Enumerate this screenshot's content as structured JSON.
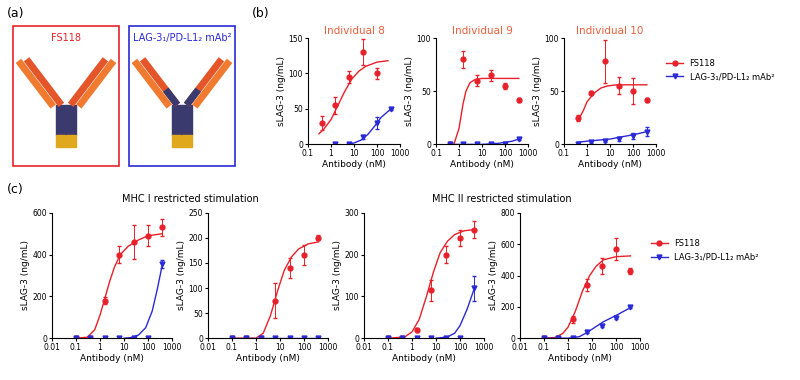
{
  "diagram": {
    "label": "(a)",
    "molecules": [
      {
        "name": "FS118",
        "color": "#e8202a"
      },
      {
        "name": "LAG-3₁/PD-L1₂ mAb²",
        "color": "#2a2ad6"
      }
    ]
  },
  "panel_labels": [
    "(b)",
    "(c)"
  ],
  "group_titles": [
    "MHC I restricted stimulation",
    "MHC II restricted stimulation"
  ],
  "chart_data": [
    {
      "type": "line",
      "title": "Individual 8",
      "x_label": "Antibody (nM)",
      "y_label": "sLAG-3 (ng/mL)",
      "log": "x",
      "xlim": [
        0.1,
        1000
      ],
      "xticks": [
        0.1,
        1,
        10,
        100,
        1000
      ],
      "ylim": [
        0,
        150
      ],
      "yticks": [
        0,
        50,
        100,
        150
      ],
      "series": [
        {
          "name": "FS118",
          "color": "#e8202a",
          "marker": "circle",
          "x": [
            0.39,
            1.56,
            6.25,
            25,
            100
          ],
          "values": [
            30,
            55,
            95,
            130,
            100
          ],
          "errors": [
            10,
            12,
            8,
            18,
            8
          ],
          "fit_x": [
            0.3,
            0.5,
            1,
            2,
            4,
            8,
            16,
            32,
            100,
            300
          ],
          "fit": [
            15,
            22,
            35,
            55,
            75,
            92,
            103,
            110,
            116,
            118
          ]
        },
        {
          "name": "LAG-3₁/PD-L1₂ mAb²",
          "color": "#2a2ad6",
          "marker": "triangle_down",
          "x": [
            1.56,
            6.25,
            25,
            100,
            400
          ],
          "values": [
            0,
            0,
            10,
            30,
            50
          ],
          "errors": [
            0,
            0,
            3,
            8,
            2
          ],
          "fit_x": [
            5,
            10,
            20,
            40,
            80,
            150,
            400
          ],
          "fit": [
            0,
            2,
            6,
            14,
            26,
            38,
            50
          ]
        }
      ]
    },
    {
      "type": "line",
      "title": "Individual 9",
      "x_label": "Antibody (nM)",
      "y_label": "sLAG-3 (ng/mL)",
      "log": "x",
      "xlim": [
        0.1,
        1000
      ],
      "xticks": [
        0.1,
        1,
        10,
        100,
        1000
      ],
      "ylim": [
        0,
        100
      ],
      "yticks": [
        0,
        50,
        100
      ],
      "series": [
        {
          "name": "FS118",
          "color": "#e8202a",
          "marker": "circle",
          "x": [
            0.39,
            1.56,
            6.25,
            25,
            100,
            400
          ],
          "values": [
            0,
            80,
            60,
            65,
            55,
            42
          ],
          "errors": [
            0,
            8,
            5,
            5,
            3,
            2
          ],
          "fit_x": [
            0.6,
            1,
            1.5,
            2,
            3,
            5,
            10,
            30,
            100,
            400
          ],
          "fit": [
            0,
            15,
            38,
            50,
            58,
            61,
            62,
            62,
            62,
            62
          ]
        },
        {
          "name": "LAG-3₁/PD-L1₂ mAb²",
          "color": "#2a2ad6",
          "marker": "triangle_down",
          "x": [
            0.39,
            1.56,
            6.25,
            25,
            100,
            400
          ],
          "values": [
            0,
            0,
            0,
            0,
            0,
            5
          ],
          "errors": [
            0,
            0,
            0,
            0,
            0,
            1
          ],
          "fit_x": [
            0.39,
            10,
            50,
            100,
            200,
            400
          ],
          "fit": [
            0,
            0,
            1,
            2,
            3,
            5
          ]
        }
      ]
    },
    {
      "type": "line",
      "title": "Individual 10",
      "x_label": "Antibody (nM)",
      "y_label": "sLAG-3 (ng/mL)",
      "log": "x",
      "legend": "right",
      "xlim": [
        0.1,
        1000
      ],
      "xticks": [
        0.1,
        1,
        10,
        100,
        1000
      ],
      "ylim": [
        0,
        100
      ],
      "yticks": [
        0,
        50,
        100
      ],
      "series": [
        {
          "name": "FS118",
          "color": "#e8202a",
          "marker": "circle",
          "x": [
            0.39,
            1.56,
            6.25,
            25,
            100,
            400
          ],
          "values": [
            25,
            48,
            78,
            55,
            50,
            42
          ],
          "errors": [
            3,
            2,
            20,
            8,
            12,
            2
          ],
          "fit_x": [
            0.4,
            0.7,
            1,
            2,
            4,
            8,
            20,
            100,
            400
          ],
          "fit": [
            22,
            32,
            40,
            48,
            53,
            55,
            56,
            56,
            56
          ]
        },
        {
          "name": "LAG-3₁/PD-L1₂ mAb²",
          "color": "#2a2ad6",
          "marker": "triangle_down",
          "x": [
            0.39,
            1.56,
            6.25,
            25,
            100,
            400
          ],
          "values": [
            0,
            2,
            3,
            5,
            8,
            12
          ],
          "errors": [
            0,
            1,
            1,
            2,
            3,
            4
          ],
          "fit_x": [
            0.39,
            1,
            3,
            10,
            30,
            100,
            400
          ],
          "fit": [
            2,
            3,
            4,
            5,
            7,
            9,
            12
          ]
        }
      ]
    },
    {
      "type": "line",
      "x_label": "Antibody (nM)",
      "y_label": "sLAG-3 (ng/mL)",
      "log": "x",
      "xlim": [
        0.01,
        1000
      ],
      "xticks": [
        0.01,
        0.1,
        1,
        10,
        100,
        1000
      ],
      "ylim": [
        0,
        600
      ],
      "yticks": [
        0,
        200,
        400,
        600
      ],
      "series": [
        {
          "name": "FS118",
          "color": "#e8202a",
          "marker": "circle",
          "x": [
            0.098,
            0.39,
            1.56,
            6.25,
            25,
            100,
            400
          ],
          "values": [
            0,
            0,
            180,
            400,
            460,
            490,
            530
          ],
          "errors": [
            0,
            0,
            15,
            40,
            80,
            50,
            40
          ],
          "fit_x": [
            0.1,
            0.3,
            0.6,
            1,
            1.5,
            2.5,
            4,
            7,
            15,
            40,
            100,
            400
          ],
          "fit": [
            0,
            5,
            40,
            110,
            180,
            270,
            340,
            400,
            440,
            470,
            490,
            500
          ]
        },
        {
          "name": "LAG-3₁/PD-L1₂ mAb²",
          "color": "#2a2ad6",
          "marker": "triangle_down",
          "x": [
            0.098,
            0.39,
            1.56,
            6.25,
            25,
            100,
            400
          ],
          "values": [
            0,
            0,
            0,
            0,
            0,
            0,
            355
          ],
          "errors": [
            0,
            0,
            0,
            0,
            0,
            0,
            20
          ],
          "fit_x": [
            10,
            20,
            40,
            80,
            150,
            250,
            400
          ],
          "fit": [
            0,
            3,
            15,
            50,
            130,
            240,
            355
          ]
        }
      ]
    },
    {
      "type": "line",
      "x_label": "Antibody (nM)",
      "y_label": "sLAG-3 (ng/mL)",
      "log": "x",
      "xlim": [
        0.01,
        1000
      ],
      "xticks": [
        0.01,
        0.1,
        1,
        10,
        100,
        1000
      ],
      "ylim": [
        0,
        250
      ],
      "yticks": [
        0,
        50,
        100,
        150,
        200,
        250
      ],
      "series": [
        {
          "name": "FS118",
          "color": "#e8202a",
          "marker": "circle",
          "x": [
            0.098,
            0.39,
            1.56,
            6.25,
            25,
            100,
            400
          ],
          "values": [
            0,
            0,
            0,
            75,
            140,
            165,
            200
          ],
          "errors": [
            0,
            0,
            0,
            35,
            20,
            20,
            5
          ],
          "fit_x": [
            0.1,
            1,
            2,
            4,
            8,
            15,
            30,
            60,
            150,
            400
          ],
          "fit": [
            0,
            0,
            10,
            45,
            95,
            135,
            162,
            178,
            188,
            192
          ]
        },
        {
          "name": "LAG-3₁/PD-L1₂ mAb²",
          "color": "#2a2ad6",
          "marker": "triangle_down",
          "x": [
            0.098,
            0.39,
            1.56,
            6.25,
            25,
            100,
            400
          ],
          "values": [
            0,
            0,
            0,
            0,
            0,
            0,
            0
          ],
          "errors": [
            0,
            0,
            0,
            0,
            0,
            0,
            0
          ],
          "fit_x": [
            0.1,
            400
          ],
          "fit": [
            0,
            0
          ]
        }
      ]
    },
    {
      "type": "line",
      "x_label": "Antibody (nM)",
      "y_label": "sLAG-3 (ng/mL)",
      "log": "x",
      "xlim": [
        0.01,
        1000
      ],
      "xticks": [
        0.01,
        0.1,
        1,
        10,
        100,
        1000
      ],
      "ylim": [
        0,
        300
      ],
      "yticks": [
        0,
        100,
        200,
        300
      ],
      "series": [
        {
          "name": "FS118",
          "color": "#e8202a",
          "marker": "circle",
          "x": [
            0.098,
            0.39,
            1.56,
            6.25,
            25,
            100,
            400
          ],
          "values": [
            0,
            0,
            20,
            115,
            200,
            240,
            260
          ],
          "errors": [
            0,
            0,
            5,
            25,
            20,
            20,
            20
          ],
          "fit_x": [
            0.1,
            0.5,
            1,
            2,
            4,
            8,
            15,
            30,
            60,
            150,
            400
          ],
          "fit": [
            0,
            3,
            15,
            45,
            100,
            160,
            205,
            232,
            248,
            257,
            260
          ]
        },
        {
          "name": "LAG-3₁/PD-L1₂ mAb²",
          "color": "#2a2ad6",
          "marker": "triangle_down",
          "x": [
            0.098,
            0.39,
            1.56,
            6.25,
            25,
            100,
            400
          ],
          "values": [
            0,
            0,
            0,
            0,
            0,
            0,
            120
          ],
          "errors": [
            0,
            0,
            0,
            0,
            0,
            0,
            30
          ],
          "fit_x": [
            10,
            30,
            60,
            100,
            200,
            400
          ],
          "fit": [
            0,
            3,
            12,
            30,
            70,
            120
          ]
        }
      ]
    },
    {
      "type": "line",
      "x_label": "Antibody (nM)",
      "y_label": "sLAG-3 (ng/mL)",
      "log": "x",
      "legend": "right",
      "xlim": [
        0.01,
        1000
      ],
      "xticks": [
        0.01,
        0.1,
        1,
        10,
        100,
        1000
      ],
      "ylim": [
        0,
        800
      ],
      "yticks": [
        0,
        200,
        400,
        600,
        800
      ],
      "series": [
        {
          "name": "FS118",
          "color": "#e8202a",
          "marker": "circle",
          "x": [
            0.098,
            0.39,
            1.56,
            6.25,
            25,
            100,
            400
          ],
          "values": [
            0,
            0,
            120,
            340,
            460,
            570,
            430
          ],
          "errors": [
            0,
            0,
            20,
            40,
            50,
            70,
            20
          ],
          "fit_x": [
            0.1,
            0.3,
            0.6,
            1,
            2,
            4,
            8,
            15,
            30,
            100,
            400
          ],
          "fit": [
            0,
            5,
            30,
            70,
            170,
            300,
            400,
            460,
            500,
            520,
            525
          ]
        },
        {
          "name": "LAG-3₁/PD-L1₂ mAb²",
          "color": "#2a2ad6",
          "marker": "triangle_down",
          "x": [
            0.098,
            0.39,
            1.56,
            6.25,
            25,
            100,
            400
          ],
          "values": [
            0,
            0,
            0,
            40,
            80,
            130,
            200
          ],
          "errors": [
            0,
            0,
            0,
            5,
            10,
            10,
            5
          ],
          "fit_x": [
            0.1,
            1,
            3,
            6,
            15,
            30,
            100,
            400
          ],
          "fit": [
            0,
            0,
            10,
            35,
            75,
            105,
            145,
            195
          ]
        }
      ]
    }
  ]
}
